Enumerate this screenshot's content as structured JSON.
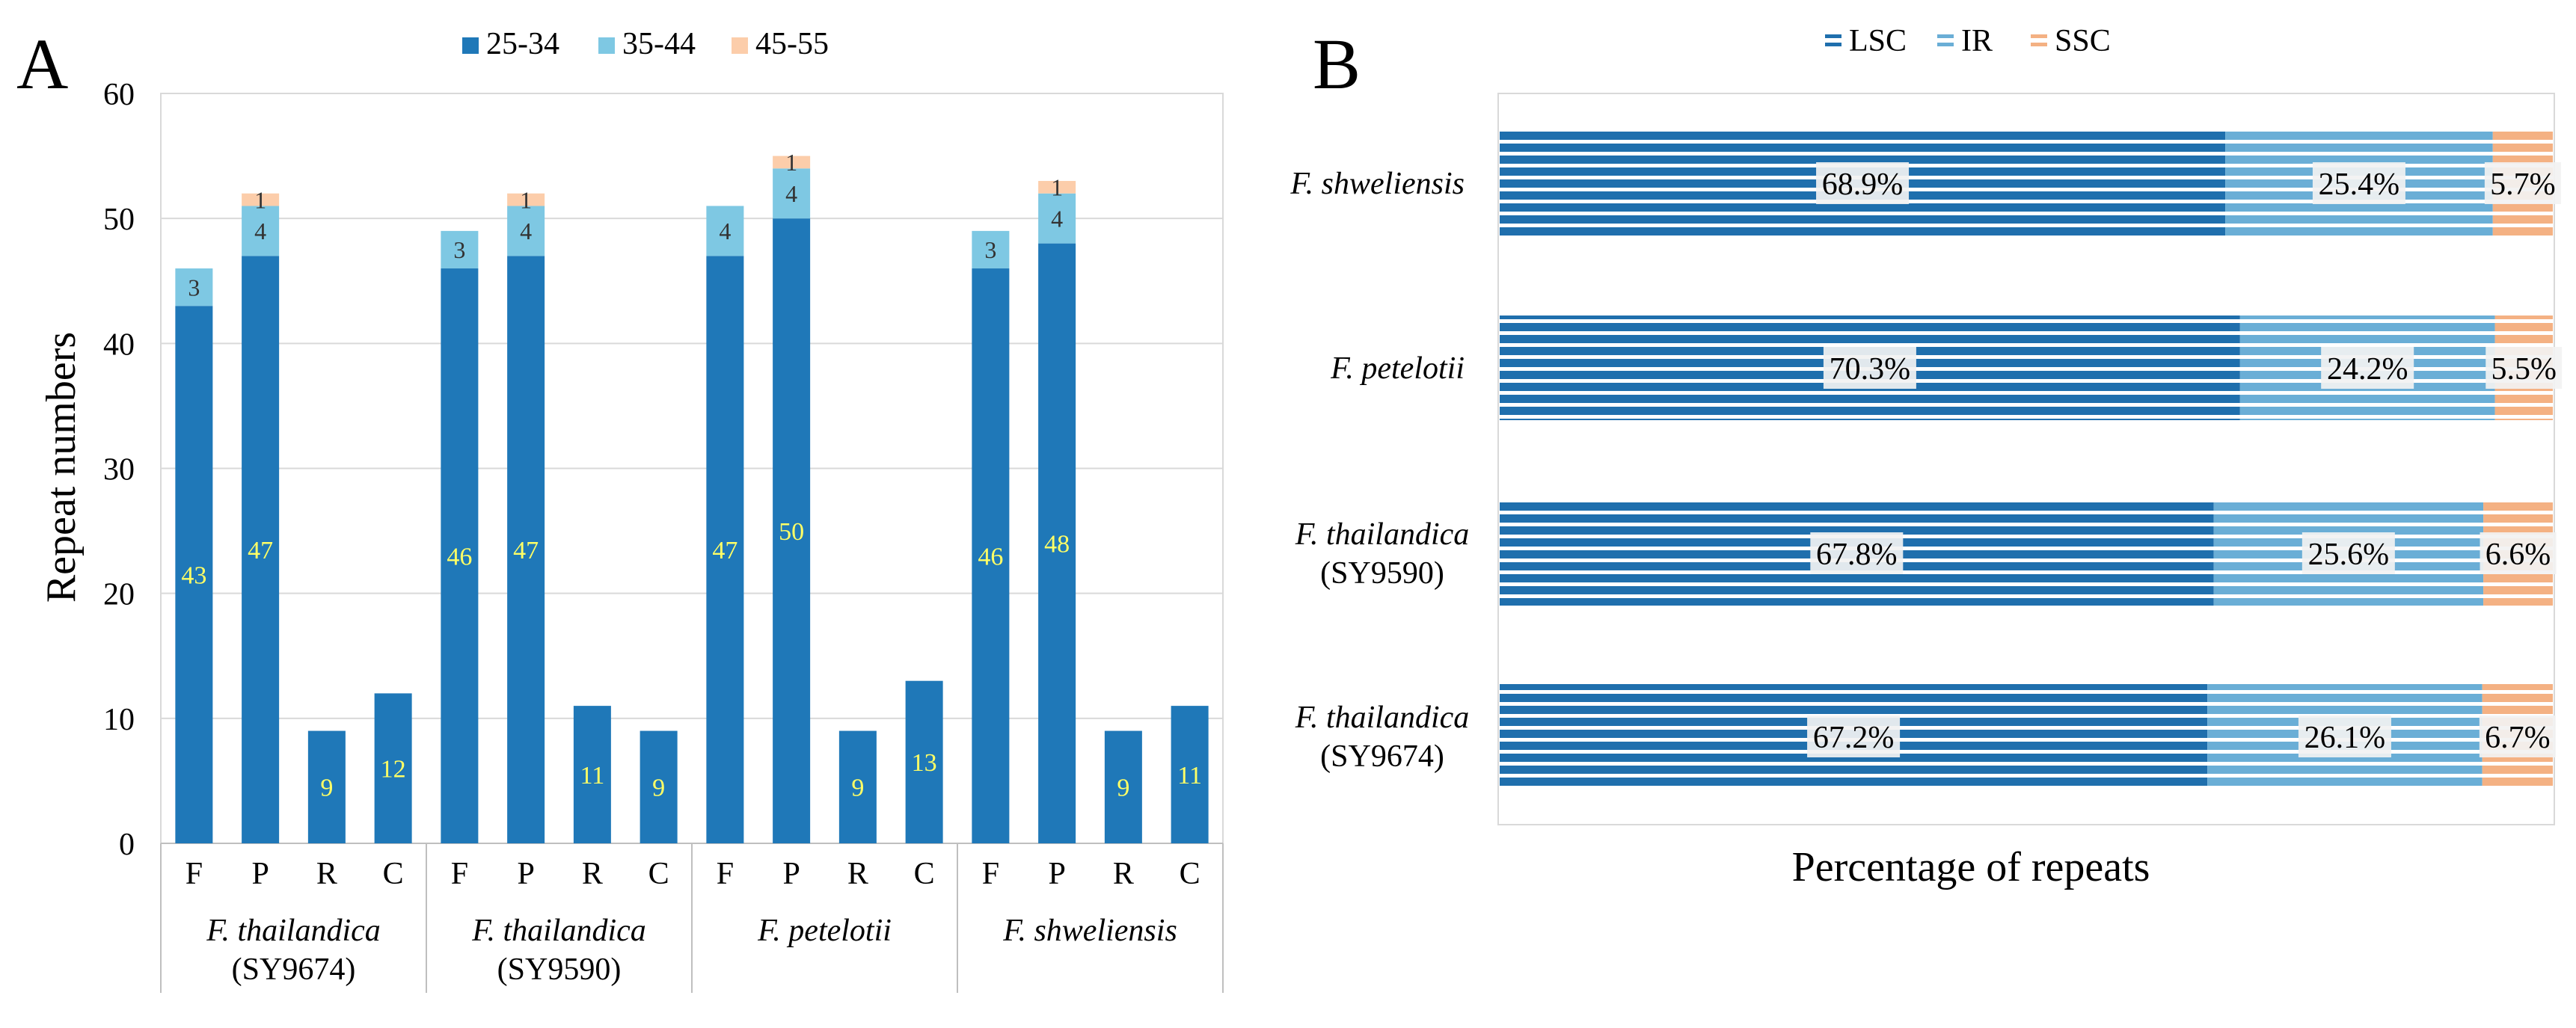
{
  "panel_labels": {
    "a": "A",
    "b": "B"
  },
  "chart_data": [
    {
      "type": "bar",
      "stacked": true,
      "ylabel": "Repeat numbers",
      "ylim": [
        0,
        60
      ],
      "yticks": [
        0,
        10,
        20,
        30,
        40,
        50,
        60
      ],
      "grid": true,
      "legend_position": "top",
      "group_labels": [
        {
          "name": "F. thailandica",
          "sub": "(SY9674)"
        },
        {
          "name": "F. thailandica",
          "sub": "(SY9590)"
        },
        {
          "name": "F. petelotii",
          "sub": ""
        },
        {
          "name": "F. shweliensis",
          "sub": ""
        }
      ],
      "categories": [
        "F",
        "P",
        "R",
        "C",
        "F",
        "P",
        "R",
        "C",
        "F",
        "P",
        "R",
        "C",
        "F",
        "P",
        "R",
        "C"
      ],
      "series": [
        {
          "name": "25-34",
          "color": "#1f78b8",
          "label_color": "#ffff66",
          "values": [
            43,
            47,
            9,
            12,
            46,
            47,
            11,
            9,
            47,
            50,
            9,
            13,
            46,
            48,
            9,
            11
          ]
        },
        {
          "name": "35-44",
          "color": "#7ec8e3",
          "label_color": "#333333",
          "values": [
            3,
            4,
            0,
            0,
            3,
            4,
            0,
            0,
            4,
            4,
            0,
            0,
            3,
            4,
            0,
            0
          ]
        },
        {
          "name": "45-55",
          "color": "#fccdaa",
          "label_color": "#333333",
          "values": [
            0,
            1,
            0,
            0,
            0,
            1,
            0,
            0,
            0,
            1,
            0,
            0,
            0,
            1,
            0,
            0
          ]
        }
      ]
    },
    {
      "type": "bar",
      "orientation": "horizontal",
      "stacked_percent": true,
      "xlabel": "Percentage of repeats",
      "legend_position": "top",
      "categories": [
        {
          "name": "F. shweliensis",
          "sub": ""
        },
        {
          "name": "F. petelotii",
          "sub": ""
        },
        {
          "name": "F. thailandica",
          "sub": "(SY9590)"
        },
        {
          "name": "F. thailandica",
          "sub": "(SY9674)"
        }
      ],
      "series": [
        {
          "name": "LSC",
          "color": "#1f6fad",
          "labels": [
            "68.9%",
            "70.3%",
            "67.8%",
            "67.2%"
          ],
          "values": [
            68.9,
            70.3,
            67.8,
            67.2
          ]
        },
        {
          "name": "IR",
          "color": "#6aaed6",
          "labels": [
            "25.4%",
            "24.2%",
            "25.6%",
            "26.1%"
          ],
          "values": [
            25.4,
            24.2,
            25.6,
            26.1
          ]
        },
        {
          "name": "SSC",
          "color": "#f4b183",
          "labels": [
            "5.7%",
            "5.5%",
            "6.6%",
            "6.7%"
          ],
          "values": [
            5.7,
            5.5,
            6.6,
            6.7
          ]
        }
      ]
    }
  ]
}
